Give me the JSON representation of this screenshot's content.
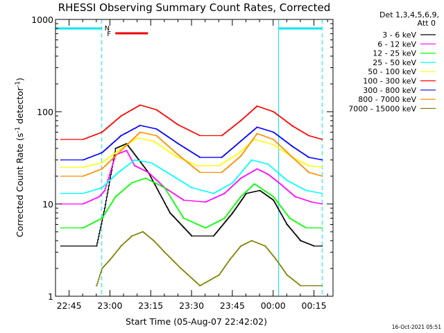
{
  "chart_data": {
    "type": "line",
    "title": "RHESSI Observing Summary Count Rates, Corrected",
    "xlabel": "Start Time (05-Aug-07 22:42:02)",
    "ylabel_main": "Corrected Count Rate (s",
    "ylabel_sup1": "-1",
    "ylabel_mid": " detector",
    "ylabel_sup2": "-1",
    "ylabel_end": ")",
    "ylabel": "Corrected Count Rate (s-1 detector-1)",
    "yscale": "log",
    "ylim": [
      1,
      1000
    ],
    "xlim": [
      "22:40",
      "00:22"
    ],
    "x_ticks": [
      "22:45",
      "23:00",
      "23:15",
      "23:30",
      "23:45",
      "00:00",
      "00:15"
    ],
    "y_ticks": [
      "1",
      "10",
      "100",
      "1000"
    ],
    "legend_header": [
      "Det 1,3,4,5,6,9,",
      "Att 0"
    ],
    "legend_position": "right",
    "timestamp": "16-Oct-2021 05:51",
    "markers": {
      "N_label": "N",
      "F_label": "F",
      "cyan_vertical_times": [
        "22:40",
        "22:57",
        "00:02",
        "00:18"
      ],
      "night_intervals": [
        [
          "22:40",
          "22:57"
        ],
        [
          "00:02",
          "00:18"
        ]
      ],
      "flare_interval": [
        "23:02",
        "23:14"
      ]
    },
    "series": [
      {
        "name": "3 - 6 keV",
        "color": "#000000",
        "x": [
          "22:42",
          "22:55",
          "22:58",
          "23:02",
          "23:06",
          "23:14",
          "23:22",
          "23:30",
          "23:38",
          "23:45",
          "23:50",
          "23:55",
          "00:00",
          "00:05",
          "00:10",
          "00:15",
          "00:18"
        ],
        "values": [
          3.5,
          3.5,
          9,
          40,
          45,
          22,
          8,
          4.5,
          4.5,
          8,
          13,
          14,
          11,
          6,
          4,
          3.5,
          3.5
        ]
      },
      {
        "name": "6 - 12 keV",
        "color": "#ff00ff",
        "x": [
          "22:42",
          "22:50",
          "22:56",
          "22:58",
          "23:02",
          "23:06",
          "23:09",
          "23:14",
          "23:20",
          "23:27",
          "23:35",
          "23:42",
          "23:48",
          "23:54",
          "23:58",
          "00:02",
          "00:08",
          "00:14",
          "00:18"
        ],
        "values": [
          10,
          10,
          12,
          14,
          34,
          38,
          26,
          22,
          15,
          11,
          10.5,
          13,
          19,
          24,
          21,
          17,
          12,
          10.5,
          10
        ]
      },
      {
        "name": "12 - 25 keV",
        "color": "#00ff00",
        "x": [
          "22:42",
          "22:50",
          "22:57",
          "23:02",
          "23:08",
          "23:13",
          "23:20",
          "23:27",
          "23:35",
          "23:42",
          "23:48",
          "23:53",
          "00:00",
          "00:06",
          "00:12",
          "00:18"
        ],
        "values": [
          5.5,
          5.5,
          7,
          12,
          17,
          19,
          15,
          7,
          5.5,
          7,
          12,
          16.5,
          12,
          7,
          5.5,
          5.5
        ]
      },
      {
        "name": "25 - 50 keV",
        "color": "#00ffff",
        "x": [
          "22:42",
          "22:50",
          "22:57",
          "23:03",
          "23:09",
          "23:15",
          "23:22",
          "23:30",
          "23:38",
          "23:45",
          "23:52",
          "23:58",
          "00:05",
          "00:12",
          "00:18"
        ],
        "values": [
          13,
          13,
          15,
          22,
          30,
          28,
          21,
          15,
          13,
          17,
          30,
          27,
          18,
          14,
          13
        ]
      },
      {
        "name": "50 - 100 keV",
        "color": "#ffff00",
        "x": [
          "22:42",
          "22:50",
          "22:57",
          "23:04",
          "23:10",
          "23:16",
          "23:24",
          "23:32",
          "23:40",
          "23:47",
          "23:53",
          "00:00",
          "00:07",
          "00:13",
          "00:18"
        ],
        "values": [
          25,
          25,
          28,
          40,
          52,
          48,
          33,
          26,
          26,
          35,
          50,
          44,
          32,
          26,
          25
        ]
      },
      {
        "name": "100 - 300 keV",
        "color": "#ff0000",
        "x": [
          "22:42",
          "22:50",
          "22:57",
          "23:04",
          "23:11",
          "23:17",
          "23:25",
          "23:33",
          "23:41",
          "23:48",
          "23:54",
          "00:00",
          "00:07",
          "00:13",
          "00:18"
        ],
        "values": [
          50,
          50,
          60,
          90,
          118,
          105,
          72,
          55,
          55,
          80,
          115,
          100,
          70,
          55,
          50
        ]
      },
      {
        "name": "300 - 800 keV",
        "color": "#0000ff",
        "x": [
          "22:42",
          "22:50",
          "22:57",
          "23:04",
          "23:11",
          "23:17",
          "23:25",
          "23:33",
          "23:41",
          "23:48",
          "23:54",
          "00:00",
          "00:07",
          "00:13",
          "00:18"
        ],
        "values": [
          30,
          30,
          36,
          55,
          71,
          65,
          45,
          32,
          32,
          48,
          68,
          60,
          42,
          32,
          30
        ]
      },
      {
        "name": "800 - 7000 keV",
        "color": "#ff8c00",
        "x": [
          "22:42",
          "22:50",
          "22:57",
          "23:04",
          "23:11",
          "23:17",
          "23:25",
          "23:33",
          "23:41",
          "23:48",
          "23:54",
          "00:00",
          "00:07",
          "00:13",
          "00:18"
        ],
        "values": [
          20,
          20,
          24,
          38,
          60,
          55,
          34,
          22,
          22,
          33,
          58,
          50,
          32,
          22,
          20
        ]
      },
      {
        "name": "7000 - 15000 keV",
        "color": "#808000",
        "x": [
          "22:55",
          "22:57",
          "23:00",
          "23:04",
          "23:08",
          "23:12",
          "23:16",
          "23:20",
          "23:26",
          "23:33",
          "23:40",
          "23:44",
          "23:48",
          "23:52",
          "23:57",
          "00:01",
          "00:05",
          "00:10",
          "00:15",
          "00:18"
        ],
        "values": [
          1.3,
          2,
          2.5,
          3.5,
          4.5,
          5,
          4,
          3,
          2,
          1.3,
          1.7,
          2.5,
          3.5,
          4,
          3.5,
          2.5,
          1.7,
          1.3,
          1.3,
          1.3
        ]
      }
    ]
  }
}
